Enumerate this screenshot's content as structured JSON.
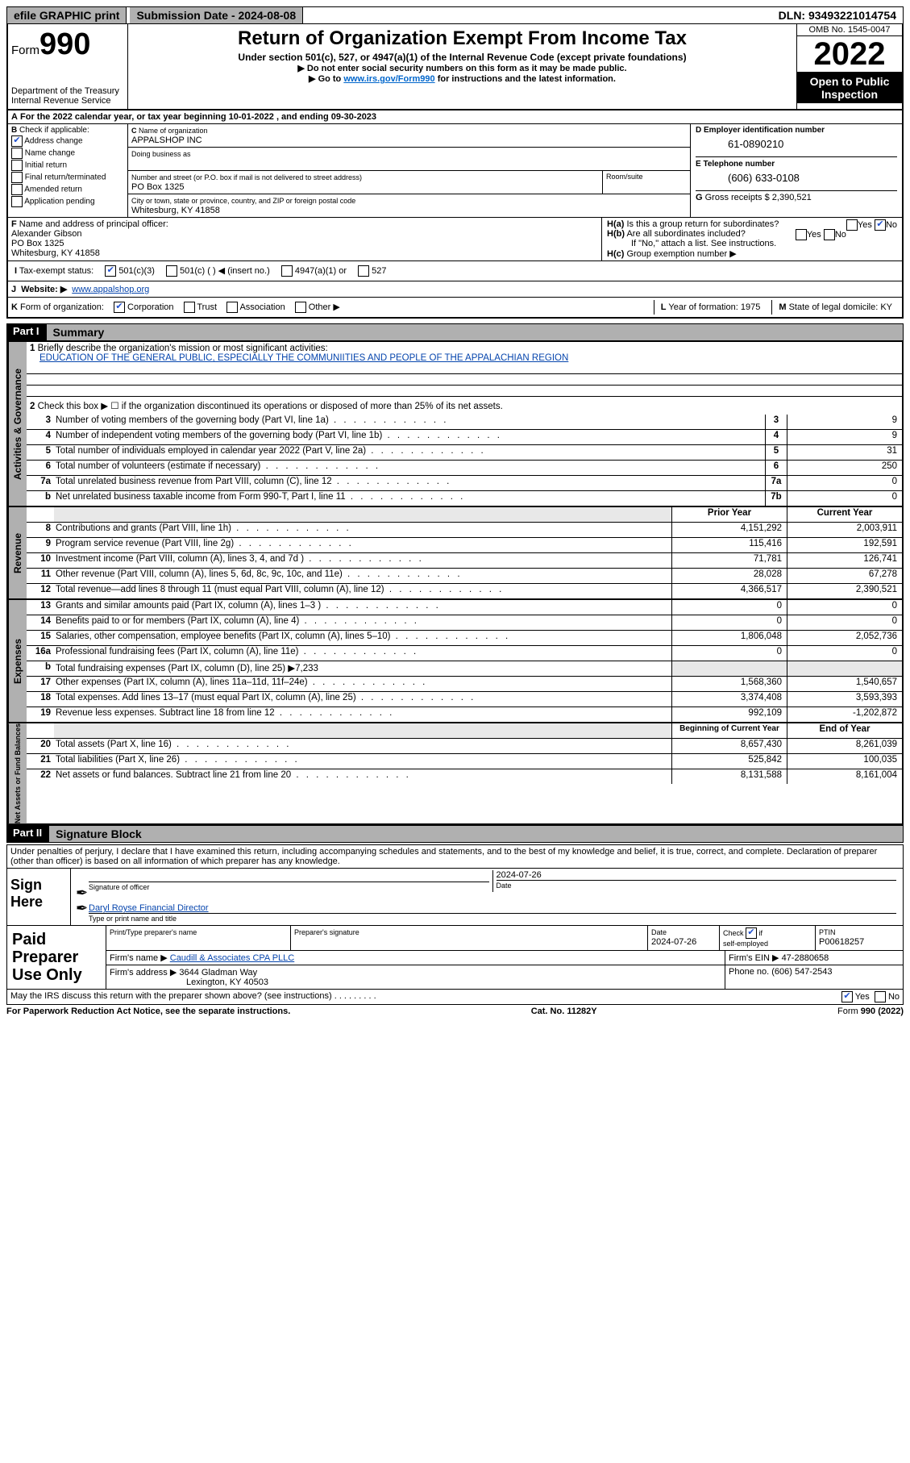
{
  "topbar": {
    "efile": "efile GRAPHIC print",
    "submission": "Submission Date - 2024-08-08",
    "dln": "DLN: 93493221014754"
  },
  "header": {
    "form_prefix": "Form",
    "form_num": "990",
    "dept": "Department of the Treasury",
    "irs": "Internal Revenue Service",
    "title": "Return of Organization Exempt From Income Tax",
    "subtitle": "Under section 501(c), 527, or 4947(a)(1) of the Internal Revenue Code (except private foundations)",
    "note1": "Do not enter social security numbers on this form as it may be made public.",
    "note2_pre": "Go to ",
    "note2_link": "www.irs.gov/Form990",
    "note2_post": " for instructions and the latest information.",
    "omb": "OMB No. 1545-0047",
    "year": "2022",
    "inspection": "Open to Public Inspection"
  },
  "A": {
    "line": "For the 2022 calendar year, or tax year beginning 10-01-2022    , and ending 09-30-2023"
  },
  "B": {
    "title": "Check if applicable:",
    "items": [
      "Address change",
      "Name change",
      "Initial return",
      "Final return/terminated",
      "Amended return",
      "Application pending"
    ],
    "checked": [
      true,
      false,
      false,
      false,
      false,
      false
    ]
  },
  "C": {
    "name_lbl": "Name of organization",
    "name": "APPALSHOP INC",
    "dba_lbl": "Doing business as",
    "dba": "",
    "addr_lbl": "Number and street (or P.O. box if mail is not delivered to street address)",
    "room_lbl": "Room/suite",
    "addr": "PO Box 1325",
    "city_lbl": "City or town, state or province, country, and ZIP or foreign postal code",
    "city": "Whitesburg, KY  41858"
  },
  "D": {
    "lbl": "Employer identification number",
    "val": "61-0890210"
  },
  "E": {
    "lbl": "Telephone number",
    "val": "(606) 633-0108"
  },
  "G": {
    "lbl": "Gross receipts $",
    "val": "2,390,521"
  },
  "F": {
    "lbl": "Name and address of principal officer:",
    "name": "Alexander Gibson",
    "addr1": "PO Box 1325",
    "addr2": "Whitesburg, KY  41858"
  },
  "H": {
    "a": "Is this a group return for subordinates?",
    "b": "Are all subordinates included?",
    "b_note": "If \"No,\" attach a list. See instructions.",
    "c": "Group exemption number ▶"
  },
  "I": {
    "lbl": "Tax-exempt status:",
    "opt1": "501(c)(3)",
    "opt2": "501(c) (  ) ◀ (insert no.)",
    "opt3": "4947(a)(1) or",
    "opt4": "527"
  },
  "J": {
    "lbl": "Website: ▶",
    "val": "www.appalshop.org"
  },
  "K": {
    "lbl": "Form of organization:",
    "opts": [
      "Corporation",
      "Trust",
      "Association",
      "Other ▶"
    ]
  },
  "L": {
    "lbl": "Year of formation:",
    "val": "1975"
  },
  "M": {
    "lbl": "State of legal domicile:",
    "val": "KY"
  },
  "part1": {
    "label": "Part I",
    "title": "Summary",
    "q1": "Briefly describe the organization's mission or most significant activities:",
    "mission": "EDUCATION OF THE GENERAL PUBLIC, ESPECIALLY THE COMMUNIITIES AND PEOPLE OF THE APPALACHIAN REGION",
    "q2": "Check this box ▶ ☐  if the organization discontinued its operations or disposed of more than 25% of its net assets.",
    "rows_gov": [
      {
        "n": "3",
        "d": "Number of voting members of the governing body (Part VI, line 1a)",
        "box": "3",
        "v": "9"
      },
      {
        "n": "4",
        "d": "Number of independent voting members of the governing body (Part VI, line 1b)",
        "box": "4",
        "v": "9"
      },
      {
        "n": "5",
        "d": "Total number of individuals employed in calendar year 2022 (Part V, line 2a)",
        "box": "5",
        "v": "31"
      },
      {
        "n": "6",
        "d": "Total number of volunteers (estimate if necessary)",
        "box": "6",
        "v": "250"
      },
      {
        "n": "7a",
        "d": "Total unrelated business revenue from Part VIII, column (C), line 12",
        "box": "7a",
        "v": "0"
      },
      {
        "n": "b",
        "d": "Net unrelated business taxable income from Form 990-T, Part I, line 11",
        "box": "7b",
        "v": "0"
      }
    ],
    "head_prior": "Prior Year",
    "head_curr": "Current Year",
    "rows_rev": [
      {
        "n": "8",
        "d": "Contributions and grants (Part VIII, line 1h)",
        "p": "4,151,292",
        "c": "2,003,911"
      },
      {
        "n": "9",
        "d": "Program service revenue (Part VIII, line 2g)",
        "p": "115,416",
        "c": "192,591"
      },
      {
        "n": "10",
        "d": "Investment income (Part VIII, column (A), lines 3, 4, and 7d )",
        "p": "71,781",
        "c": "126,741"
      },
      {
        "n": "11",
        "d": "Other revenue (Part VIII, column (A), lines 5, 6d, 8c, 9c, 10c, and 11e)",
        "p": "28,028",
        "c": "67,278"
      },
      {
        "n": "12",
        "d": "Total revenue—add lines 8 through 11 (must equal Part VIII, column (A), line 12)",
        "p": "4,366,517",
        "c": "2,390,521"
      }
    ],
    "rows_exp": [
      {
        "n": "13",
        "d": "Grants and similar amounts paid (Part IX, column (A), lines 1–3 )",
        "p": "0",
        "c": "0"
      },
      {
        "n": "14",
        "d": "Benefits paid to or for members (Part IX, column (A), line 4)",
        "p": "0",
        "c": "0"
      },
      {
        "n": "15",
        "d": "Salaries, other compensation, employee benefits (Part IX, column (A), lines 5–10)",
        "p": "1,806,048",
        "c": "2,052,736"
      },
      {
        "n": "16a",
        "d": "Professional fundraising fees (Part IX, column (A), line 11e)",
        "p": "0",
        "c": "0"
      },
      {
        "n": "b",
        "d": "Total fundraising expenses (Part IX, column (D), line 25) ▶7,233",
        "p": "",
        "c": "",
        "shade": true
      },
      {
        "n": "17",
        "d": "Other expenses (Part IX, column (A), lines 11a–11d, 11f–24e)",
        "p": "1,568,360",
        "c": "1,540,657"
      },
      {
        "n": "18",
        "d": "Total expenses. Add lines 13–17 (must equal Part IX, column (A), line 25)",
        "p": "3,374,408",
        "c": "3,593,393"
      },
      {
        "n": "19",
        "d": "Revenue less expenses. Subtract line 18 from line 12",
        "p": "992,109",
        "c": "-1,202,872"
      }
    ],
    "head_beg": "Beginning of Current Year",
    "head_end": "End of Year",
    "rows_net": [
      {
        "n": "20",
        "d": "Total assets (Part X, line 16)",
        "p": "8,657,430",
        "c": "8,261,039"
      },
      {
        "n": "21",
        "d": "Total liabilities (Part X, line 26)",
        "p": "525,842",
        "c": "100,035"
      },
      {
        "n": "22",
        "d": "Net assets or fund balances. Subtract line 21 from line 20",
        "p": "8,131,588",
        "c": "8,161,004"
      }
    ],
    "vtabs": [
      "Activities & Governance",
      "Revenue",
      "Expenses",
      "Net Assets or Fund Balances"
    ]
  },
  "part2": {
    "label": "Part II",
    "title": "Signature Block",
    "penalty": "Under penalties of perjury, I declare that I have examined this return, including accompanying schedules and statements, and to the best of my knowledge and belief, it is true, correct, and complete. Declaration of preparer (other than officer) is based on all information of which preparer has any knowledge.",
    "sign_here": "Sign Here",
    "sig_officer": "Signature of officer",
    "sig_date": "2024-07-26",
    "date_lbl": "Date",
    "officer_name": "Daryl Royse  Financial Director",
    "type_name": "Type or print name and title",
    "preparer": "Paid Preparer Use Only",
    "p_name_lbl": "Print/Type preparer's name",
    "p_sig_lbl": "Preparer's signature",
    "p_date_lbl": "Date",
    "p_date": "2024-07-26",
    "p_check_lbl": "Check ☑ if self-employed",
    "ptin_lbl": "PTIN",
    "ptin": "P00618257",
    "firm_name_lbl": "Firm's name    ▶",
    "firm_name": "Caudill & Associates CPA PLLC",
    "firm_ein_lbl": "Firm's EIN ▶",
    "firm_ein": "47-2880658",
    "firm_addr_lbl": "Firm's address ▶",
    "firm_addr1": "3644 Gladman Way",
    "firm_addr2": "Lexington, KY  40503",
    "phone_lbl": "Phone no.",
    "phone": "(606) 547-2543",
    "discuss": "May the IRS discuss this return with the preparer shown above? (see instructions)",
    "yes": "Yes",
    "no": "No"
  },
  "footer": {
    "left": "For Paperwork Reduction Act Notice, see the separate instructions.",
    "mid": "Cat. No. 11282Y",
    "right": "Form 990 (2022)"
  }
}
